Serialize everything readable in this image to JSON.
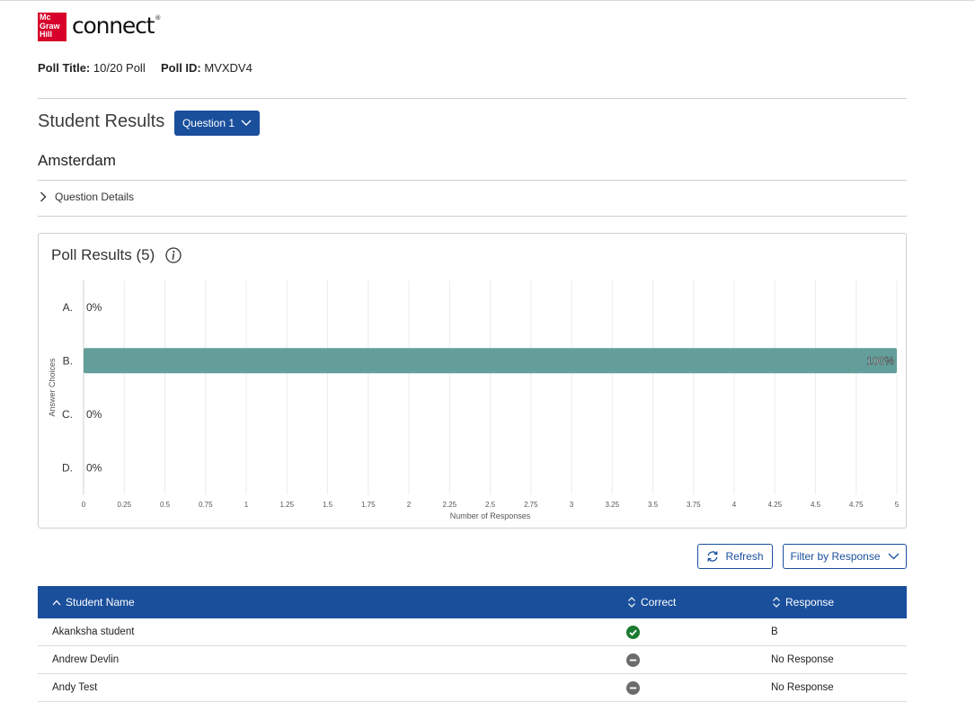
{
  "brand": {
    "logo_line1": "Mc",
    "logo_line2": "Graw",
    "logo_line3": "Hill",
    "product": "connect",
    "trademark": "®",
    "color": "#d6002a"
  },
  "poll": {
    "title_label": "Poll Title:",
    "title_value": "10/20 Poll",
    "id_label": "Poll ID:",
    "id_value": "MVXDV4"
  },
  "results_header": {
    "title": "Student Results",
    "question_selector": "Question 1"
  },
  "question": {
    "text": "Amsterdam",
    "details_label": "Question Details"
  },
  "poll_results": {
    "title": "Poll Results (5)"
  },
  "chart_data": {
    "type": "bar",
    "orientation": "horizontal",
    "categories": [
      "A.",
      "B.",
      "C.",
      "D."
    ],
    "values": [
      0,
      5,
      0,
      0
    ],
    "percent_labels": [
      "0%",
      "100%",
      "0%",
      "0%"
    ],
    "xlabel": "Number of Responses",
    "ylabel": "Answer Choices",
    "xlim": [
      0,
      5
    ],
    "xticks": [
      "0",
      "0.25",
      "0.5",
      "0.75",
      "1",
      "1.25",
      "1.5",
      "1.75",
      "2",
      "2.25",
      "2.5",
      "2.75",
      "3",
      "3.25",
      "3.5",
      "3.75",
      "4",
      "4.25",
      "4.5",
      "4.75",
      "5"
    ],
    "grid": true,
    "bar_color": "#639e9b"
  },
  "actions": {
    "refresh": "Refresh",
    "filter": "Filter by Response"
  },
  "table": {
    "headers": {
      "name": "Student Name",
      "correct": "Correct",
      "response": "Response"
    },
    "rows": [
      {
        "name": "Akanksha student",
        "correct": "correct",
        "response": "B"
      },
      {
        "name": "Andrew Devlin",
        "correct": "no-response",
        "response": "No Response"
      },
      {
        "name": "Andy Test",
        "correct": "no-response",
        "response": "No Response"
      }
    ]
  },
  "colors": {
    "primary": "#1a4f9c",
    "correct": "#1a7a2e",
    "neutral": "#6b6b6b"
  }
}
